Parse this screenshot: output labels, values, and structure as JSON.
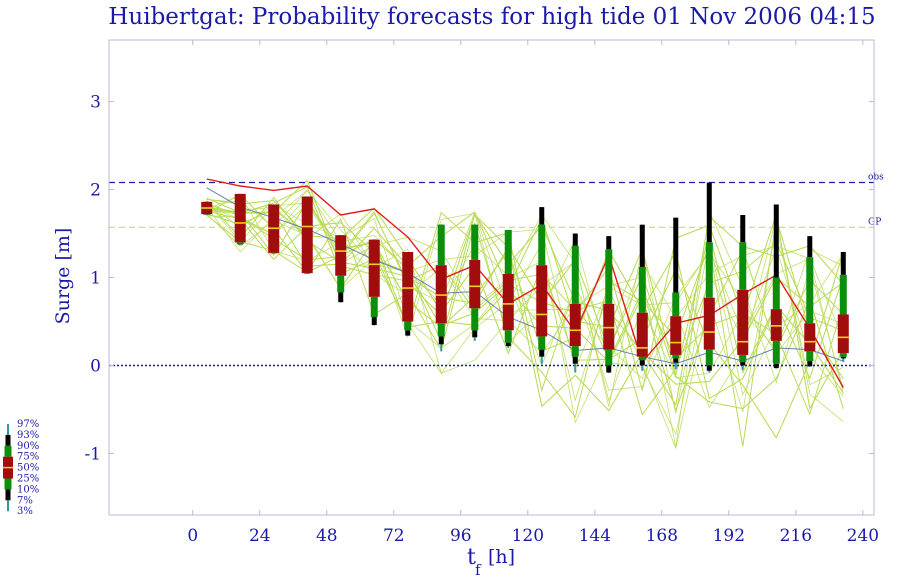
{
  "chart_data": {
    "type": "box",
    "title": "Huibertgat: Probability forecasts for high tide 01 Nov 2006 04:15",
    "xlabel_main": "t",
    "xlabel_sub": "f",
    "xlabel_unit": "[h]",
    "ylabel": "Surge [m]",
    "xlim": [
      -30,
      244
    ],
    "ylim": [
      -1.7,
      3.7
    ],
    "x_ticks": [
      0,
      24,
      48,
      72,
      96,
      120,
      144,
      168,
      192,
      216,
      240
    ],
    "y_ticks": [
      -1,
      0,
      1,
      2,
      3
    ],
    "reference_lines": [
      {
        "label": "obs",
        "y": 2.08,
        "color": "#1a1aa6",
        "style": "dashed"
      },
      {
        "label": "GP",
        "y": 1.57,
        "color": "#d9d97a",
        "style": "dashed"
      },
      {
        "label": "",
        "y": 0.0,
        "color": "#1a1aa6",
        "style": "dotted"
      }
    ],
    "legend_labels": [
      "97%",
      "93%",
      "90%",
      "75%",
      "50%",
      "25%",
      "10%",
      "7%",
      "3%"
    ],
    "legend_position": "bottom-left",
    "boxes": [
      {
        "x": 5,
        "p3": 1.72,
        "p7": 1.72,
        "p10": 1.72,
        "p25": 1.72,
        "p50": 1.79,
        "p75": 1.86,
        "p90": 1.86,
        "p93": 1.86,
        "p97": 1.86
      },
      {
        "x": 17,
        "p3": 1.38,
        "p7": 1.38,
        "p10": 1.38,
        "p25": 1.4,
        "p50": 1.62,
        "p75": 1.95,
        "p90": 1.95,
        "p93": 1.95,
        "p97": 1.95
      },
      {
        "x": 29,
        "p3": 1.28,
        "p7": 1.28,
        "p10": 1.28,
        "p25": 1.28,
        "p50": 1.56,
        "p75": 1.83,
        "p90": 1.83,
        "p93": 1.83,
        "p97": 1.83
      },
      {
        "x": 41,
        "p3": 1.05,
        "p7": 1.05,
        "p10": 1.05,
        "p25": 1.05,
        "p50": 1.58,
        "p75": 1.92,
        "p90": 1.92,
        "p93": 1.92,
        "p97": 1.92
      },
      {
        "x": 53,
        "p3": 0.72,
        "p7": 0.72,
        "p10": 0.83,
        "p25": 1.02,
        "p50": 1.3,
        "p75": 1.48,
        "p90": 1.48,
        "p93": 1.48,
        "p97": 1.48
      },
      {
        "x": 65,
        "p3": 0.46,
        "p7": 0.46,
        "p10": 0.55,
        "p25": 0.78,
        "p50": 1.15,
        "p75": 1.43,
        "p90": 1.43,
        "p93": 1.43,
        "p97": 1.43
      },
      {
        "x": 77,
        "p3": 0.34,
        "p7": 0.34,
        "p10": 0.4,
        "p25": 0.5,
        "p50": 0.88,
        "p75": 1.29,
        "p90": 1.29,
        "p93": 1.29,
        "p97": 1.29
      },
      {
        "x": 89,
        "p3": 0.16,
        "p7": 0.24,
        "p10": 0.33,
        "p25": 0.48,
        "p50": 0.8,
        "p75": 1.14,
        "p90": 1.6,
        "p93": 1.6,
        "p97": 1.6
      },
      {
        "x": 101,
        "p3": 0.28,
        "p7": 0.32,
        "p10": 0.4,
        "p25": 0.65,
        "p50": 0.9,
        "p75": 1.2,
        "p90": 1.6,
        "p93": 1.6,
        "p97": 1.6
      },
      {
        "x": 113,
        "p3": 0.2,
        "p7": 0.22,
        "p10": 0.26,
        "p25": 0.4,
        "p50": 0.7,
        "p75": 1.04,
        "p90": 1.54,
        "p93": 1.54,
        "p97": 1.54
      },
      {
        "x": 125,
        "p3": 0.02,
        "p7": 0.1,
        "p10": 0.18,
        "p25": 0.33,
        "p50": 0.58,
        "p75": 1.14,
        "p90": 1.6,
        "p93": 1.8,
        "p97": 1.8
      },
      {
        "x": 137,
        "p3": -0.08,
        "p7": 0.02,
        "p10": 0.1,
        "p25": 0.22,
        "p50": 0.4,
        "p75": 0.7,
        "p90": 1.36,
        "p93": 1.5,
        "p97": 1.5
      },
      {
        "x": 149,
        "p3": -0.08,
        "p7": -0.08,
        "p10": 0.0,
        "p25": 0.18,
        "p50": 0.43,
        "p75": 0.7,
        "p90": 1.32,
        "p93": 1.47,
        "p97": 1.47
      },
      {
        "x": 161,
        "p3": -0.06,
        "p7": 0.0,
        "p10": 0.06,
        "p25": 0.1,
        "p50": 0.2,
        "p75": 0.6,
        "p90": 1.12,
        "p93": 1.6,
        "p97": 1.6
      },
      {
        "x": 173,
        "p3": -0.04,
        "p7": 0.03,
        "p10": 0.08,
        "p25": 0.12,
        "p50": 0.26,
        "p75": 0.56,
        "p90": 0.83,
        "p93": 1.68,
        "p97": 1.68
      },
      {
        "x": 185,
        "p3": -0.08,
        "p7": -0.06,
        "p10": 0.0,
        "p25": 0.18,
        "p50": 0.38,
        "p75": 0.77,
        "p90": 1.4,
        "p93": 2.08,
        "p97": 2.08
      },
      {
        "x": 197,
        "p3": -0.05,
        "p7": 0.0,
        "p10": 0.04,
        "p25": 0.12,
        "p50": 0.27,
        "p75": 0.86,
        "p90": 1.4,
        "p93": 1.71,
        "p97": 1.71
      },
      {
        "x": 209,
        "p3": -0.03,
        "p7": -0.03,
        "p10": 0.02,
        "p25": 0.28,
        "p50": 0.45,
        "p75": 0.64,
        "p90": 1.0,
        "p93": 1.83,
        "p97": 1.83
      },
      {
        "x": 221,
        "p3": -0.01,
        "p7": -0.01,
        "p10": 0.05,
        "p25": 0.16,
        "p50": 0.27,
        "p75": 0.48,
        "p90": 1.23,
        "p93": 1.47,
        "p97": 1.47
      },
      {
        "x": 233,
        "p3": 0.04,
        "p7": 0.08,
        "p10": 0.1,
        "p25": 0.14,
        "p50": 0.32,
        "p75": 0.58,
        "p90": 1.03,
        "p93": 1.29,
        "p97": 1.29
      }
    ],
    "observed_line": {
      "color": "#e41a1a",
      "x": [
        5,
        17,
        29,
        41,
        53,
        65,
        77,
        89,
        101,
        113,
        125,
        137,
        149,
        161,
        173,
        185,
        197,
        209,
        221,
        233
      ],
      "y": [
        2.12,
        2.04,
        1.99,
        2.04,
        1.71,
        1.78,
        1.46,
        0.98,
        1.14,
        0.7,
        0.92,
        0.38,
        1.25,
        0.04,
        0.48,
        0.57,
        0.81,
        1.03,
        0.42,
        -0.25
      ]
    },
    "control_line": {
      "color": "#6b7fb3",
      "x": [
        5,
        17,
        29,
        41,
        53,
        65,
        77,
        89,
        101,
        113,
        125,
        137,
        149,
        161,
        173,
        185,
        197,
        209,
        221,
        233
      ],
      "y": [
        2.02,
        1.8,
        1.68,
        1.55,
        1.38,
        1.2,
        1.05,
        0.82,
        0.84,
        0.55,
        0.4,
        0.17,
        0.2,
        0.1,
        0.02,
        0.15,
        0.05,
        0.2,
        0.18,
        0.05
      ]
    },
    "ensemble_members": 50,
    "ensemble_color": "#b9dc5a",
    "colors": {
      "text": "#1a1aa6",
      "axis": "#b8b8d8",
      "outer": "#000000",
      "inner": "#0b8f0b",
      "box": "#a10d0d",
      "median": "#f2d01a",
      "tail": "#2a9d9d"
    }
  }
}
